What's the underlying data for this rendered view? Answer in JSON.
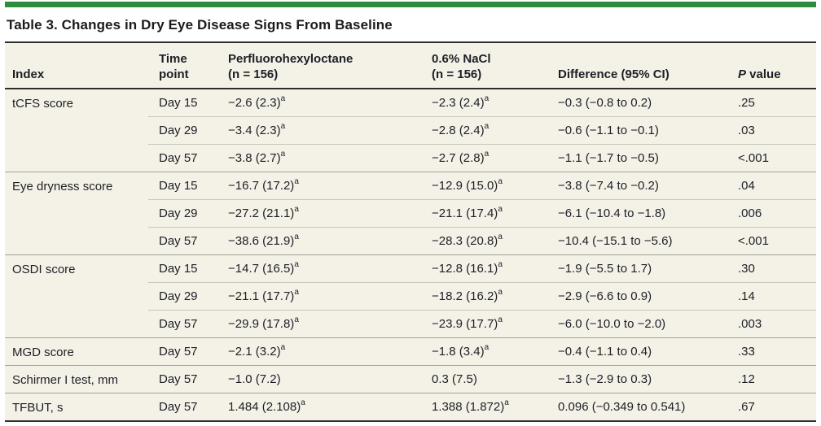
{
  "colors": {
    "accent_green": "#2d8c3e",
    "table_bg": "#f4f1e7",
    "rule_dark": "#2e2e2e",
    "rule_group": "#a3a29a",
    "rule_inner": "#c9c6ba",
    "text": "#1e1f26"
  },
  "title": "Table 3. Changes in Dry Eye Disease Signs From Baseline",
  "header": {
    "index": "Index",
    "time_1": "Time",
    "time_2": "point",
    "drug_1": "Perfluorohexyloctane",
    "drug_2": "(n = 156)",
    "nacl_1": "0.6% NaCl",
    "nacl_2": "(n = 156)",
    "difference": "Difference (95% CI)",
    "p_italic": "P",
    "p_rest": " value"
  },
  "footnote_marker": "a",
  "groups": [
    {
      "label": "tCFS score",
      "rows": [
        {
          "time": "Day 15",
          "drug": "−2.6 (2.3)",
          "drug_sup": "a",
          "nacl": "−2.3 (2.4)",
          "nacl_sup": "a",
          "diff": "−0.3 (−0.8 to 0.2)",
          "p": ".25"
        },
        {
          "time": "Day 29",
          "drug": "−3.4 (2.3)",
          "drug_sup": "a",
          "nacl": "−2.8 (2.4)",
          "nacl_sup": "a",
          "diff": "−0.6 (−1.1 to −0.1)",
          "p": ".03"
        },
        {
          "time": "Day 57",
          "drug": "−3.8 (2.7)",
          "drug_sup": "a",
          "nacl": "−2.7 (2.8)",
          "nacl_sup": "a",
          "diff": "−1.1 (−1.7 to −0.5)",
          "p": "<.001"
        }
      ]
    },
    {
      "label": "Eye dryness score",
      "rows": [
        {
          "time": "Day 15",
          "drug": "−16.7 (17.2)",
          "drug_sup": "a",
          "nacl": "−12.9 (15.0)",
          "nacl_sup": "a",
          "diff": "−3.8 (−7.4 to −0.2)",
          "p": ".04"
        },
        {
          "time": "Day 29",
          "drug": "−27.2 (21.1)",
          "drug_sup": "a",
          "nacl": "−21.1 (17.4)",
          "nacl_sup": "a",
          "diff": "−6.1 (−10.4 to −1.8)",
          "p": ".006"
        },
        {
          "time": "Day 57",
          "drug": "−38.6 (21.9)",
          "drug_sup": "a",
          "nacl": "−28.3 (20.8)",
          "nacl_sup": "a",
          "diff": "−10.4 (−15.1 to −5.6)",
          "p": "<.001"
        }
      ]
    },
    {
      "label": "OSDI score",
      "rows": [
        {
          "time": "Day 15",
          "drug": "−14.7 (16.5)",
          "drug_sup": "a",
          "nacl": "−12.8 (16.1)",
          "nacl_sup": "a",
          "diff": "−1.9 (−5.5 to 1.7)",
          "p": ".30"
        },
        {
          "time": "Day 29",
          "drug": "−21.1 (17.7)",
          "drug_sup": "a",
          "nacl": "−18.2 (16.2)",
          "nacl_sup": "a",
          "diff": "−2.9 (−6.6 to 0.9)",
          "p": ".14"
        },
        {
          "time": "Day 57",
          "drug": "−29.9 (17.8)",
          "drug_sup": "a",
          "nacl": "−23.9 (17.7)",
          "nacl_sup": "a",
          "diff": "−6.0 (−10.0 to −2.0)",
          "p": ".003"
        }
      ]
    },
    {
      "label": "MGD score",
      "rows": [
        {
          "time": "Day 57",
          "drug": "−2.1 (3.2)",
          "drug_sup": "a",
          "nacl": "−1.8 (3.4)",
          "nacl_sup": "a",
          "diff": "−0.4 (−1.1 to 0.4)",
          "p": ".33"
        }
      ]
    },
    {
      "label": "Schirmer I test, mm",
      "rows": [
        {
          "time": "Day 57",
          "drug": "−1.0 (7.2)",
          "drug_sup": "",
          "nacl": "0.3 (7.5)",
          "nacl_sup": "",
          "diff": "−1.3 (−2.9 to 0.3)",
          "p": ".12"
        }
      ]
    },
    {
      "label": "TFBUT, s",
      "rows": [
        {
          "time": "Day 57",
          "drug": "1.484 (2.108)",
          "drug_sup": "a",
          "nacl": "1.388 (1.872)",
          "nacl_sup": "a",
          "diff": "0.096 (−0.349 to 0.541)",
          "p": ".67"
        }
      ]
    }
  ]
}
